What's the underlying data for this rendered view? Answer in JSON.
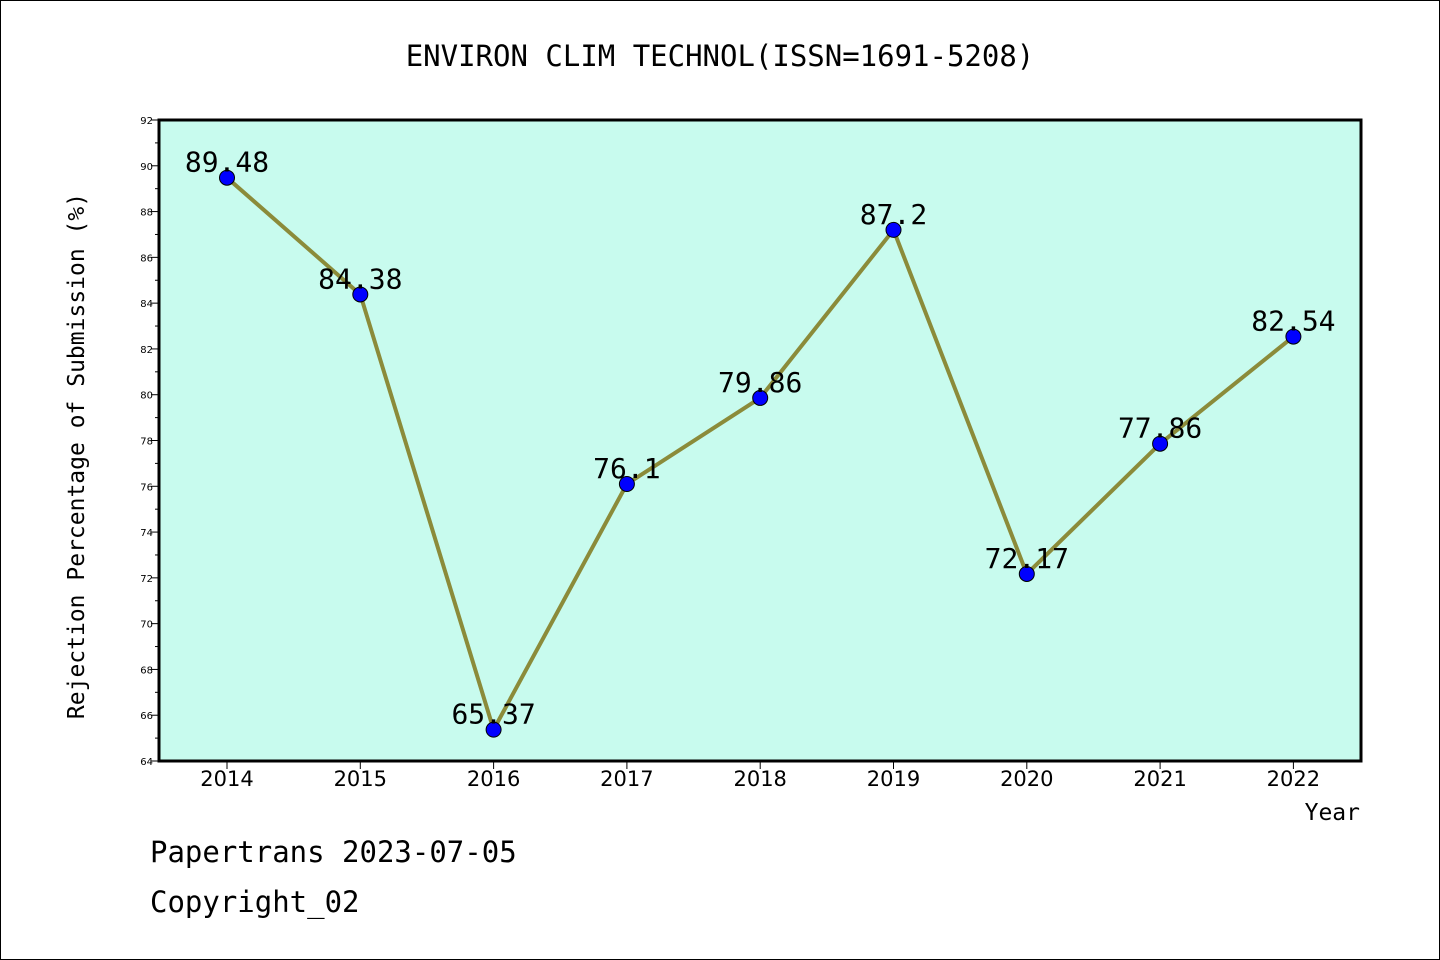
{
  "chart_data": {
    "type": "line",
    "title": "ENVIRON CLIM TECHNOL(ISSN=1691-5208)",
    "xlabel": "Year",
    "ylabel": "Rejection Percentage of Submission (%)",
    "categories": [
      "2014",
      "2015",
      "2016",
      "2017",
      "2018",
      "2019",
      "2020",
      "2021",
      "2022"
    ],
    "series": [
      {
        "values": [
          89.48,
          84.38,
          65.37,
          76.1,
          79.86,
          87.2,
          72.17,
          77.86,
          82.54
        ]
      }
    ],
    "data_labels": [
      "89.48",
      "84.38",
      "65.37",
      "76.1",
      "79.86",
      "87.2",
      "72.17",
      "77.86",
      "82.54"
    ],
    "ylim": [
      64,
      92
    ],
    "yticks": [
      "64",
      "66",
      "68",
      "70",
      "72",
      "74",
      "76",
      "78",
      "80",
      "82",
      "84",
      "86",
      "88",
      "90",
      "92"
    ],
    "grid": false,
    "colors": {
      "plot_background": "#c8fbee",
      "line": "#8b8b3a",
      "marker": "#0000ff"
    }
  },
  "footer": {
    "line1": "Papertrans 2023-07-05",
    "line2": "Copyright_02"
  }
}
